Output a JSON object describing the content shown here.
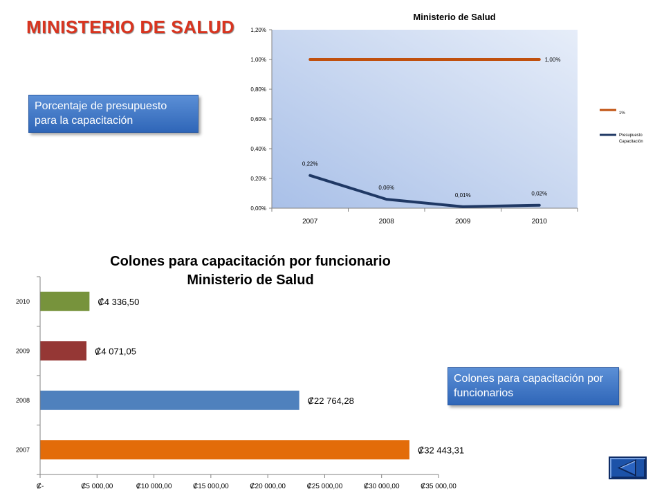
{
  "page": {
    "title": "MINISTERIO DE SALUD",
    "callout_top": "Porcentaje de presupuesto para la capacitación",
    "callout_bottom": "Colones para capacitación por funcionarios"
  },
  "colors": {
    "title": "#d9341f",
    "line_1pct": "#c0500e",
    "line_presupuesto": "#1f3864",
    "bar_2007": "#e36c09",
    "bar_2008": "#4f81bd",
    "bar_2009": "#953735",
    "bar_2010": "#77933c",
    "callout": "#3a73c4"
  },
  "nav": {
    "back_icon": "triangle-left-icon"
  },
  "chart_data": [
    {
      "type": "line",
      "title": "Ministerio de Salud",
      "categories": [
        "2007",
        "2008",
        "2009",
        "2010"
      ],
      "series": [
        {
          "name": "1%",
          "values": [
            1.0,
            1.0,
            1.0,
            1.0
          ],
          "labels": [
            "",
            "",
            "",
            "1,00%"
          ]
        },
        {
          "name": "Presupuesto Capacitación",
          "values": [
            0.22,
            0.06,
            0.01,
            0.02
          ],
          "labels": [
            "0,22%",
            "0,06%",
            "0,01%",
            "0,02%"
          ]
        }
      ],
      "ylim": [
        0,
        1.2
      ],
      "yticks": [
        "0,00%",
        "0,20%",
        "0,40%",
        "0,60%",
        "0,80%",
        "1,00%",
        "1,20%"
      ],
      "legend": "right",
      "grid": false
    },
    {
      "type": "bar",
      "orientation": "horizontal",
      "title": "Colones para capacitación por funcionario",
      "subtitle": "Ministerio de Salud",
      "categories": [
        "2007",
        "2008",
        "2009",
        "2010"
      ],
      "values": [
        32443.31,
        22764.28,
        4071.05,
        4336.5
      ],
      "labels": [
        "₡32 443,31",
        "₡22 764,28",
        "₡4 071,05",
        "₡4 336,50"
      ],
      "xlim": [
        0,
        35000
      ],
      "xticks": [
        "₡-",
        "₡5 000,00",
        "₡10 000,00",
        "₡15 000,00",
        "₡20 000,00",
        "₡25 000,00",
        "₡30 000,00",
        "₡35 000,00"
      ],
      "grid": false
    }
  ]
}
